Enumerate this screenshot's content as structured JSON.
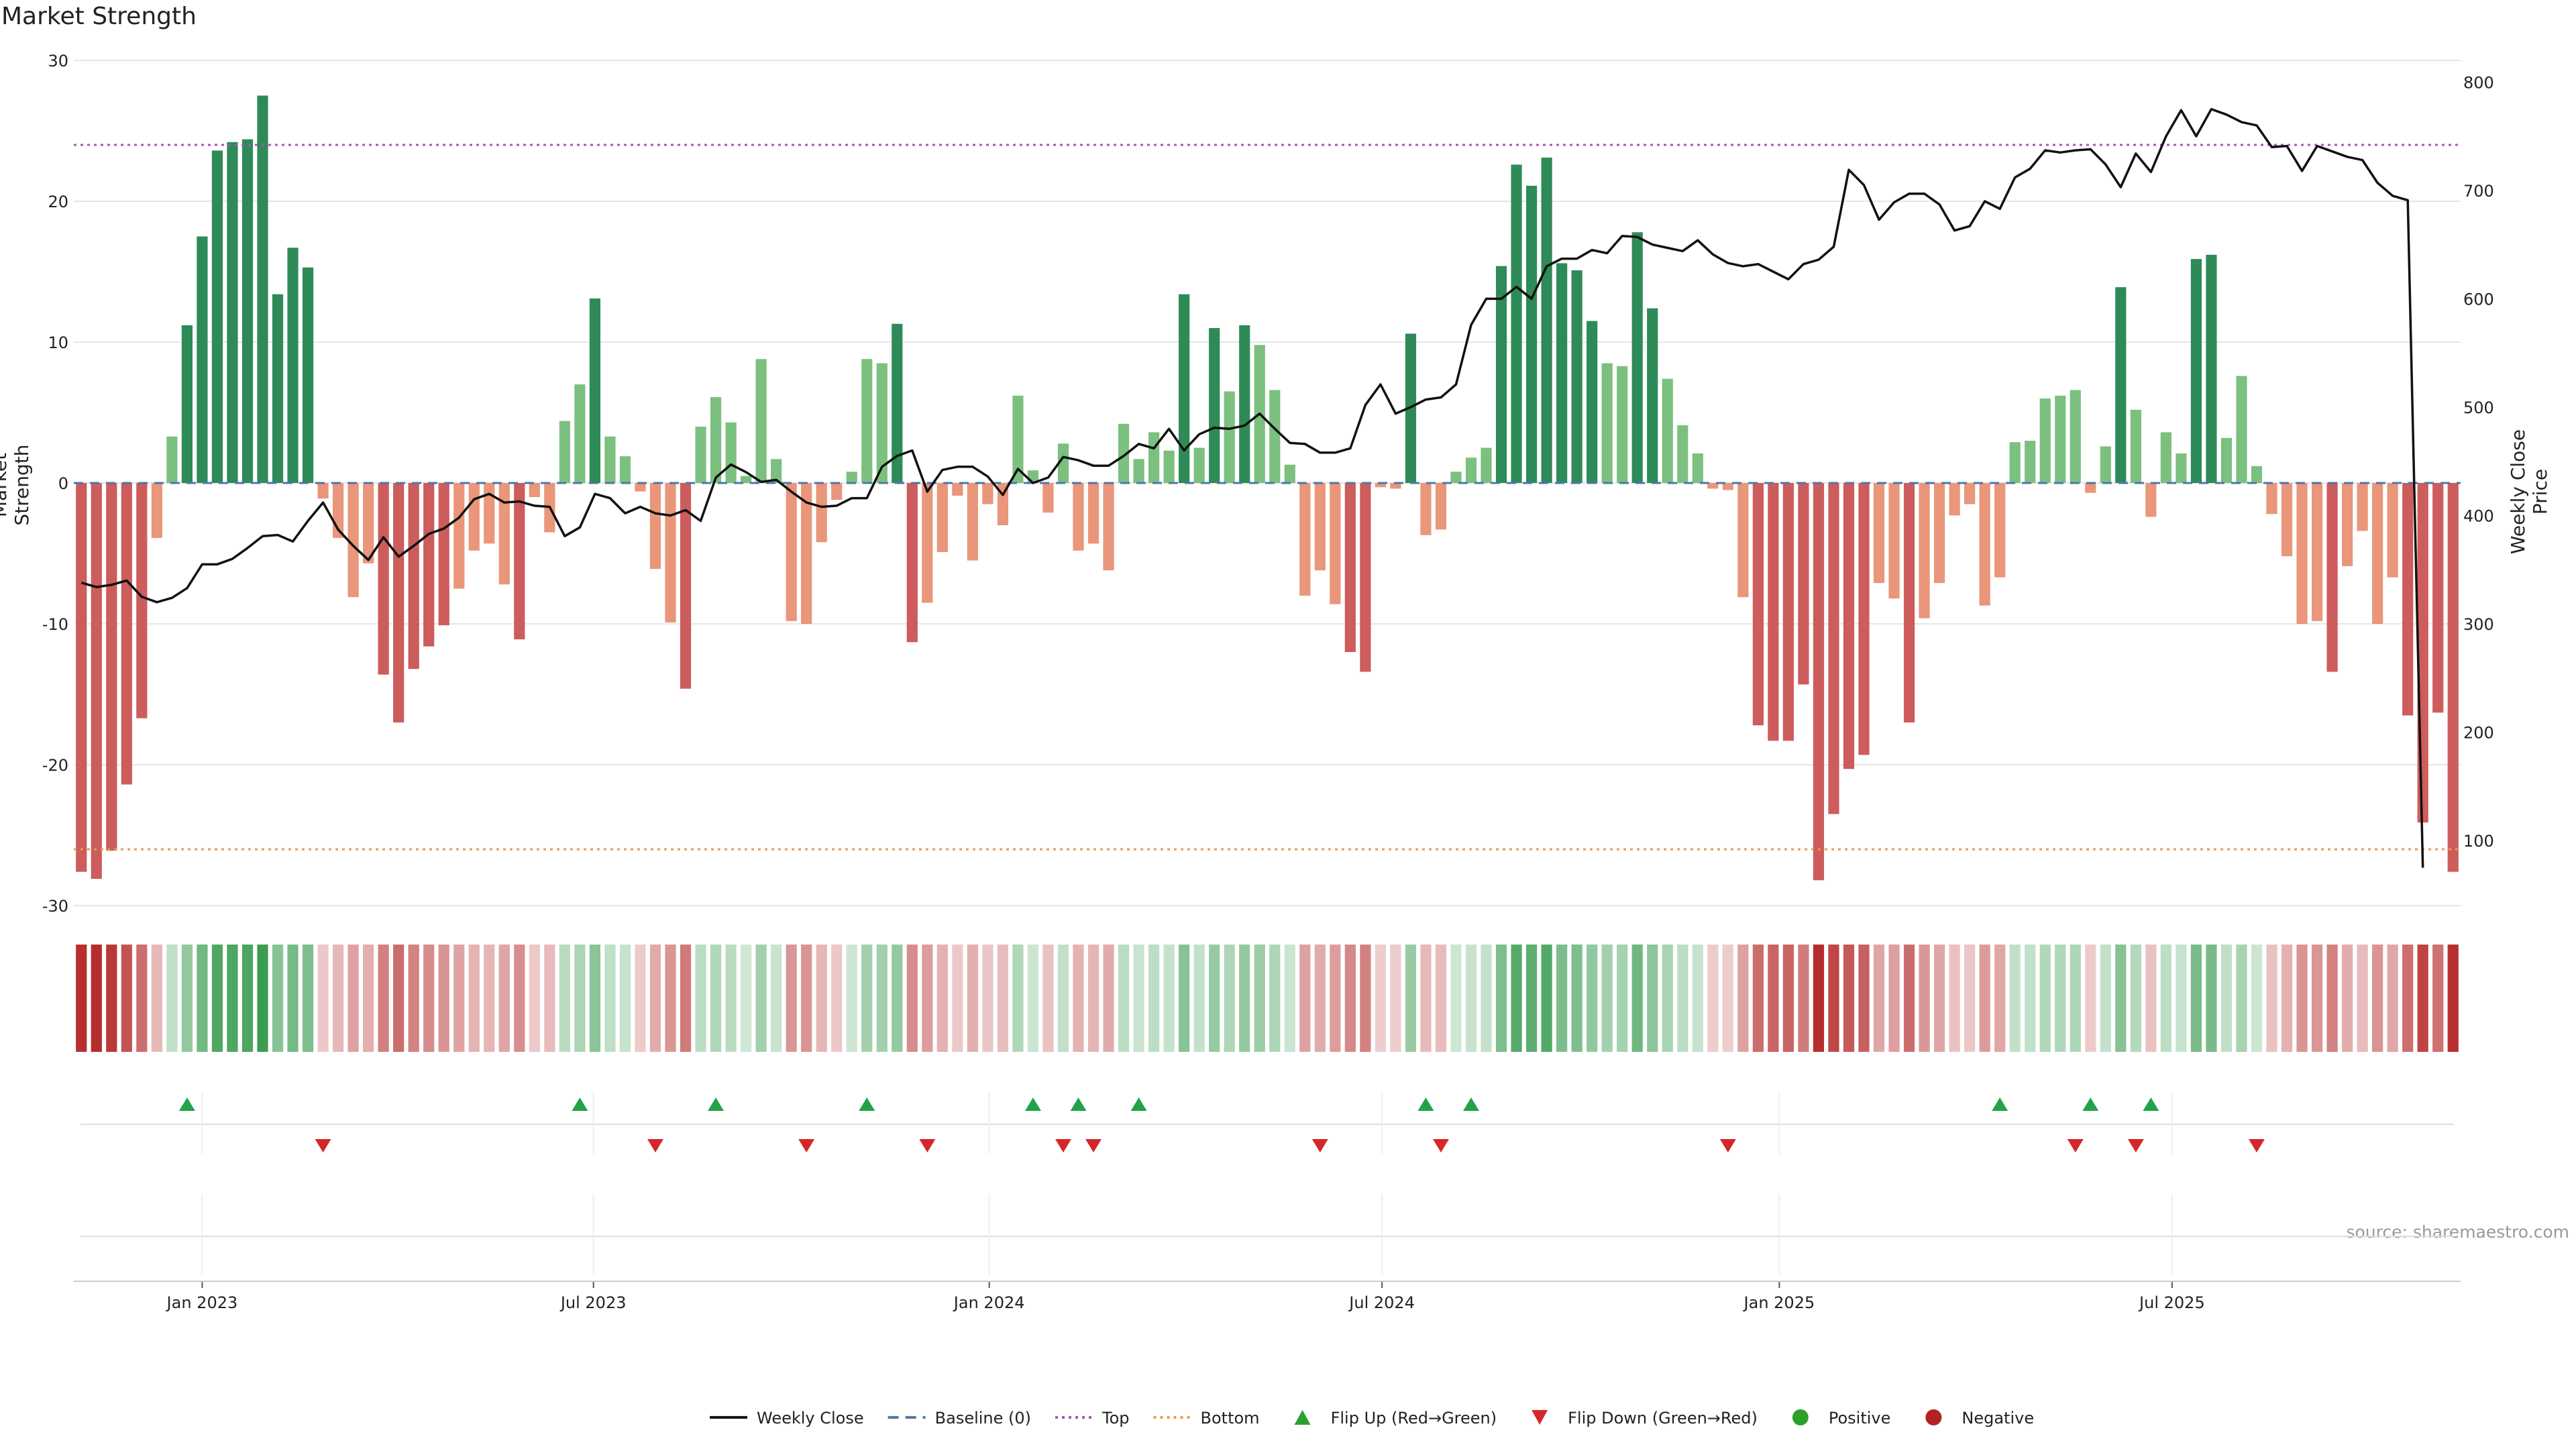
{
  "chart_data": {
    "type": "bar",
    "title": "Market Strength",
    "ylabel": "Market Strength",
    "y2label": "Weekly Close Price",
    "ylim": [
      -30,
      30
    ],
    "y2lim": [
      40,
      820
    ],
    "yticks": [
      -30,
      -20,
      -10,
      0,
      10,
      20,
      30
    ],
    "y2ticks": [
      100,
      200,
      300,
      400,
      500,
      600,
      700,
      800
    ],
    "top_line": 24,
    "bottom_line": -26,
    "x_tick_labels": [
      "Jan 2023",
      "Jul 2023",
      "Jan 2024",
      "Jul 2024",
      "Jan 2025",
      "Jul 2025"
    ],
    "x_tick_index": [
      8.0,
      33.9,
      60.1,
      86.1,
      112.4,
      138.4
    ],
    "grid": true,
    "legend_position": "bottom-center",
    "values": [
      -27.6,
      -28.1,
      -26.1,
      -21.4,
      -16.7,
      -3.9,
      3.3,
      11.2,
      17.5,
      23.6,
      24.2,
      24.4,
      27.5,
      13.4,
      16.7,
      15.3,
      -1.1,
      -3.9,
      -8.1,
      -5.7,
      -13.6,
      -17.0,
      -13.2,
      -11.6,
      -10.1,
      -7.5,
      -4.8,
      -4.3,
      -7.2,
      -11.1,
      -1.0,
      -3.5,
      4.4,
      7.0,
      13.1,
      3.3,
      1.9,
      -0.6,
      -6.1,
      -9.9,
      -14.6,
      4.0,
      6.1,
      4.3,
      0.5,
      8.8,
      1.7,
      -9.8,
      -10.0,
      -4.2,
      -1.2,
      0.8,
      8.8,
      8.5,
      11.3,
      -11.3,
      -8.5,
      -4.9,
      -0.9,
      -5.5,
      -1.5,
      -3.0,
      6.2,
      0.9,
      -2.1,
      2.8,
      -4.8,
      -4.3,
      -6.2,
      4.2,
      1.7,
      3.6,
      2.3,
      13.4,
      2.5,
      11.0,
      6.5,
      11.2,
      9.8,
      6.6,
      1.3,
      -8.0,
      -6.2,
      -8.6,
      -12.0,
      -13.4,
      -0.3,
      -0.4,
      10.6,
      -3.7,
      -3.3,
      0.8,
      1.8,
      2.5,
      15.4,
      22.6,
      21.1,
      23.1,
      15.6,
      15.1,
      11.5,
      8.5,
      8.3,
      17.8,
      12.4,
      7.4,
      4.1,
      2.1,
      -0.4,
      -0.5,
      -8.1,
      -17.2,
      -18.3,
      -18.3,
      -14.3,
      -28.2,
      -23.5,
      -20.3,
      -19.3,
      -7.1,
      -8.2,
      -17.0,
      -9.6,
      -7.1,
      -2.3,
      -1.5,
      -8.7,
      -6.7,
      2.9,
      3.0,
      6.0,
      6.2,
      6.6,
      -0.7,
      2.6,
      13.9,
      5.2,
      -2.4,
      3.6,
      2.1,
      15.9,
      16.2,
      3.2,
      7.6,
      1.2,
      -2.2,
      -5.2,
      -10.0,
      -9.8,
      -13.4,
      -5.9,
      -3.4,
      -10.0,
      -6.7,
      -16.5,
      -24.1,
      -16.3,
      -27.6
    ],
    "series": [
      {
        "name": "Weekly Close",
        "axis": "right",
        "values": [
          338,
          334,
          336,
          340,
          325,
          320,
          324,
          333,
          355,
          355,
          360,
          370,
          381,
          382,
          376,
          395,
          412,
          387,
          372,
          359,
          380,
          362,
          372,
          383,
          388,
          398,
          415,
          420,
          412,
          413,
          409,
          408,
          381,
          389,
          420,
          416,
          402,
          408,
          402,
          400,
          405,
          395,
          435,
          447,
          440,
          431,
          433,
          422,
          412,
          408,
          409,
          416,
          416,
          445,
          455,
          460,
          422,
          442,
          445,
          445,
          436,
          419,
          443,
          430,
          435,
          454,
          451,
          446,
          446,
          455,
          466,
          462,
          480,
          460,
          475,
          481,
          480,
          483,
          494,
          480,
          467,
          466,
          458,
          458,
          462,
          502,
          521,
          494,
          500,
          507,
          509,
          521,
          576,
          600,
          600,
          611,
          600,
          630,
          637,
          637,
          645,
          642,
          658,
          657,
          650,
          647,
          644,
          654,
          641,
          633,
          630,
          632,
          625,
          618,
          632,
          636,
          648,
          719,
          705,
          673,
          689,
          697,
          697,
          687,
          663,
          667,
          690,
          683,
          712,
          720,
          737,
          735,
          737,
          738,
          724,
          703,
          734,
          717,
          750,
          774,
          750,
          775,
          770,
          763,
          760,
          740,
          741,
          718,
          741,
          736,
          731,
          728,
          707,
          695,
          691,
          75
        ]
      }
    ],
    "flip_up_index": [
      7,
      33,
      42,
      52,
      63,
      66,
      70,
      89,
      92,
      127,
      133,
      137
    ],
    "flip_down_index": [
      16,
      38,
      48,
      56,
      65,
      67,
      82,
      90,
      109,
      132,
      136,
      144
    ],
    "legend": [
      {
        "label": "Weekly Close",
        "color": "#111111",
        "style": "solid"
      },
      {
        "label": "Baseline (0)",
        "color": "#4c78a8",
        "style": "dashed"
      },
      {
        "label": "Top",
        "color": "#a654b8",
        "style": "dotted"
      },
      {
        "label": "Bottom",
        "color": "#e59a55",
        "style": "dotted"
      },
      {
        "label": "Flip Up (Red→Green)",
        "color": "#2ca02c",
        "style": "triangle-up"
      },
      {
        "label": "Flip Down (Green→Red)",
        "color": "#d62728",
        "style": "triangle-down"
      },
      {
        "label": "Positive",
        "color": "#2ca02c",
        "style": "circle"
      },
      {
        "label": "Negative",
        "color": "#b22222",
        "style": "circle"
      }
    ],
    "colors": {
      "pos_strong": "#2e8b57",
      "pos_weak": "#7cc07f",
      "neg_strong": "#cd5c5c",
      "neg_weak": "#e9967a",
      "line": "#111111",
      "baseline": "#4c78a8",
      "top": "#a654b8",
      "bottom": "#e59a55"
    }
  },
  "source": "source: sharemaestro.com"
}
